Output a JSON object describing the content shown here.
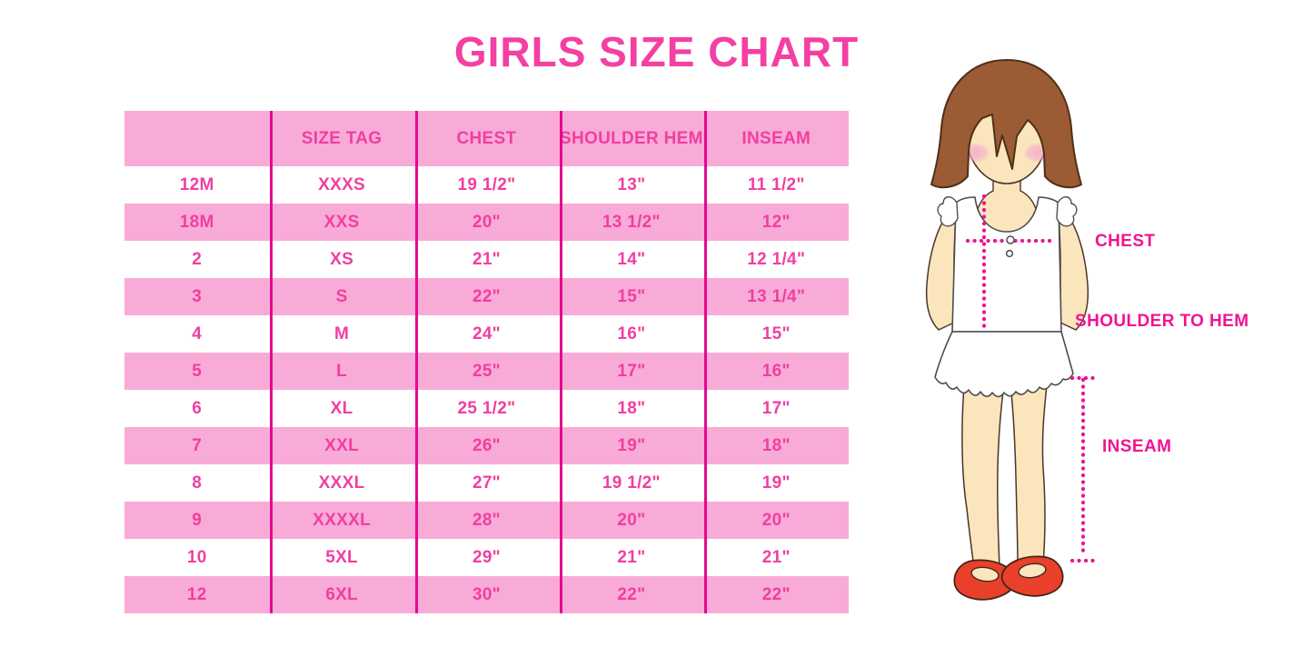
{
  "title": "GIRLS SIZE CHART",
  "chart_data": {
    "type": "table",
    "title": "GIRLS SIZE CHART",
    "columns": [
      "",
      "SIZE TAG",
      "CHEST",
      "SHOULDER HEM",
      "INSEAM"
    ],
    "rows": [
      [
        "12M",
        "XXXS",
        "19 1/2\"",
        "13\"",
        "11 1/2\""
      ],
      [
        "18M",
        "XXS",
        "20\"",
        "13 1/2\"",
        "12\""
      ],
      [
        "2",
        "XS",
        "21\"",
        "14\"",
        "12 1/4\""
      ],
      [
        "3",
        "S",
        "22\"",
        "15\"",
        "13 1/4\""
      ],
      [
        "4",
        "M",
        "24\"",
        "16\"",
        "15\""
      ],
      [
        "5",
        "L",
        "25\"",
        "17\"",
        "16\""
      ],
      [
        "6",
        "XL",
        "25 1/2\"",
        "18\"",
        "17\""
      ],
      [
        "7",
        "XXL",
        "26\"",
        "19\"",
        "18\""
      ],
      [
        "8",
        "XXXL",
        "27\"",
        "19 1/2\"",
        "19\""
      ],
      [
        "9",
        "XXXXL",
        "28\"",
        "20\"",
        "20\""
      ],
      [
        "10",
        "5XL",
        "29\"",
        "21\"",
        "21\""
      ],
      [
        "12",
        "6XL",
        "30\"",
        "22\"",
        "22\""
      ]
    ],
    "row_stripe_pattern": "header pink, then alternating white/pink starting with white"
  },
  "diagram": {
    "chest_label": "CHEST",
    "shoulder_to_hem_label": "SHOULDER TO HEM",
    "inseam_label": "INSEAM"
  },
  "colors": {
    "title_pink": "#F43FA4",
    "cell_text_pink": "#F13EA1",
    "row_pink_bg": "#F9ABD7",
    "divider_magenta": "#E40A8D",
    "label_deep_pink": "#F01493",
    "hair_brown": "#9B5B34",
    "skin": "#FBE5BD",
    "blush_pink": "#F3AECA",
    "shoe_red": "#E9402A",
    "background": "#FFFFFF"
  }
}
